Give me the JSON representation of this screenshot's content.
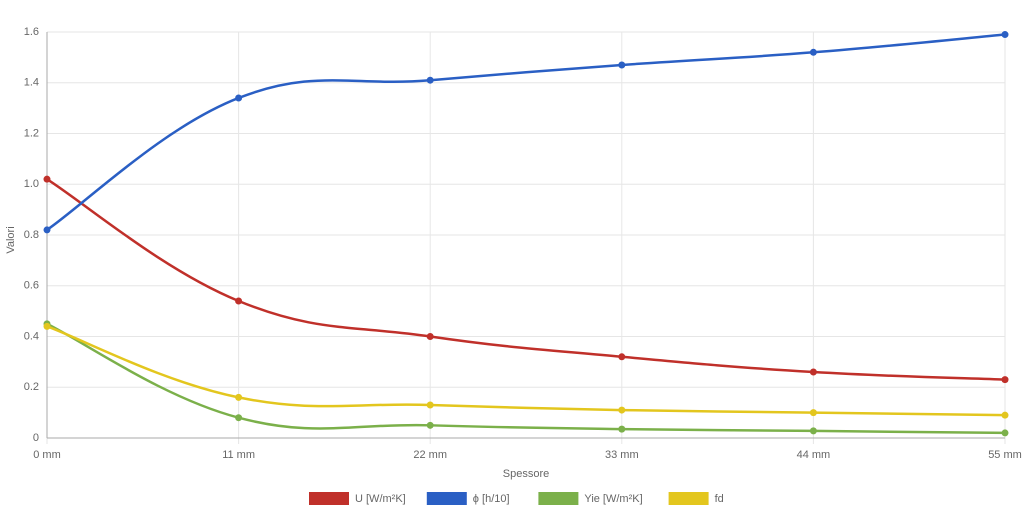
{
  "chart_data": {
    "type": "line",
    "categories": [
      "0 mm",
      "11 mm",
      "22 mm",
      "33 mm",
      "44 mm",
      "55 mm"
    ],
    "x_label": "Spessore",
    "y_label": "Valori",
    "ylim": [
      0,
      1.6
    ],
    "yticks": [
      0,
      0.2,
      0.4,
      0.6,
      0.8,
      {
        "value": 1,
        "label": "1.0"
      },
      1.2,
      1.4,
      1.6
    ],
    "grid": true,
    "legend": "bottom",
    "smooth": true,
    "series": [
      {
        "name": "U [W/m²K]",
        "color": "#c0302a",
        "values": [
          1.02,
          0.54,
          0.4,
          0.32,
          0.26,
          0.23
        ]
      },
      {
        "name": "ϕ [h/10]",
        "color": "#2a5fc4",
        "values": [
          0.82,
          1.34,
          1.41,
          1.47,
          1.52,
          1.59
        ]
      },
      {
        "name": "Yie [W/m²K]",
        "color": "#7bb04a",
        "values": [
          0.45,
          0.08,
          0.05,
          0.035,
          0.028,
          0.02
        ]
      },
      {
        "name": "fd",
        "color": "#e3c61e",
        "values": [
          0.44,
          0.16,
          0.13,
          0.11,
          0.1,
          0.09
        ]
      }
    ]
  }
}
